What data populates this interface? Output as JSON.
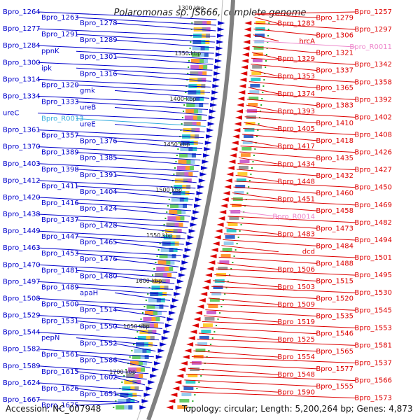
{
  "title": "Polaromonas sp. JS666, complete genome",
  "footer": {
    "accession": "Accession: NC_007948",
    "summary": "Topology: circular; Length: 5,200,264 bp; Genes: 4,873"
  },
  "colors": {
    "forward_strand": "#0000cc",
    "reverse_strand": "#dd0000",
    "rna_forward": "#33aadd",
    "rna_reverse": "#ee88cc",
    "backbone": "#808080"
  },
  "scale_labels": [
    "1300 kbp",
    "1350 kbp",
    "1400 kbp",
    "1450 kbp",
    "1500 kbp",
    "1550 kbp",
    "1600 kbp",
    "1650 kbp",
    "1700 kbp"
  ],
  "left_labels": [
    "Bpro_1264",
    "Bpro_1263",
    "Bpro_1278",
    "Bpro_1277",
    "Bpro_1291",
    "Bpro_1289",
    "Bpro_1284",
    "ppnK",
    "Bpro_1301",
    "Bpro_1300",
    "ipk",
    "Bpro_1316",
    "Bpro_1314",
    "Bpro_1320",
    "gmk",
    "Bpro_1334",
    "Bpro_1333",
    "ureB",
    "ureC",
    "Bpro_R0013",
    "ureE",
    "Bpro_1361",
    "Bpro_1357",
    "Bpro_1376",
    "Bpro_1370",
    "Bpro_1389",
    "Bpro_1385",
    "Bpro_1403",
    "Bpro_1398",
    "Bpro_1391",
    "Bpro_1412",
    "Bpro_1411",
    "Bpro_1404",
    "Bpro_1420",
    "Bpro_1416",
    "Bpro_1424",
    "Bpro_1438",
    "Bpro_1437",
    "Bpro_1428",
    "Bpro_1449",
    "Bpro_1447",
    "Bpro_1465",
    "Bpro_1463",
    "Bpro_1453",
    "Bpro_1476",
    "Bpro_1470",
    "Bpro_1481",
    "Bpro_1480",
    "Bpro_1497",
    "Bpro_1489",
    "apaH",
    "Bpro_1508",
    "Bpro_1500",
    "Bpro_1514",
    "Bpro_1529",
    "Bpro_1531",
    "Bpro_1550",
    "Bpro_1544",
    "pepN",
    "Bpro_1552",
    "Bpro_1582",
    "Bpro_1561",
    "Bpro_1586",
    "Bpro_1589",
    "Bpro_1615",
    "Bpro_1602",
    "Bpro_1624",
    "Bpro_1626",
    "Bpro_1651",
    "Bpro_1667",
    "Bpro_1675"
  ],
  "right_labels": [
    "Bpro_1257",
    "Bpro_1279",
    "Bpro_1283",
    "Bpro_1297",
    "Bpro_1306",
    "hrcA",
    "Bpro_R0011",
    "Bpro_1321",
    "Bpro_1329",
    "Bpro_1342",
    "Bpro_1337",
    "Bpro_1353",
    "Bpro_1358",
    "Bpro_1365",
    "Bpro_1374",
    "Bpro_1392",
    "Bpro_1383",
    "Bpro_1393",
    "Bpro_1402",
    "Bpro_1410",
    "Bpro_1405",
    "Bpro_1408",
    "Bpro_1418",
    "Bpro_1417",
    "Bpro_1426",
    "Bpro_1435",
    "Bpro_1434",
    "Bpro_1427",
    "Bpro_1432",
    "Bpro_1448",
    "Bpro_1450",
    "Bpro_1460",
    "Bpro_1451",
    "Bpro_1469",
    "Bpro_1458",
    "Bpro_R0014",
    "Bpro_1482",
    "Bpro_1473",
    "Bpro_1483",
    "Bpro_1494",
    "Bpro_1484",
    "dcd",
    "Bpro_1501",
    "Bpro_1488",
    "Bpro_1506",
    "Bpro_1495",
    "Bpro_1515",
    "Bpro_1503",
    "Bpro_1530",
    "Bpro_1520",
    "Bpro_1509",
    "Bpro_1545",
    "Bpro_1535",
    "Bpro_1519",
    "Bpro_1553",
    "Bpro_1546",
    "Bpro_1525",
    "Bpro_1581",
    "Bpro_1565",
    "Bpro_1554",
    "Bpro_1537",
    "Bpro_1577",
    "Bpro_1548",
    "Bpro_1566",
    "Bpro_1555",
    "Bpro_1590",
    "Bpro_1573"
  ]
}
